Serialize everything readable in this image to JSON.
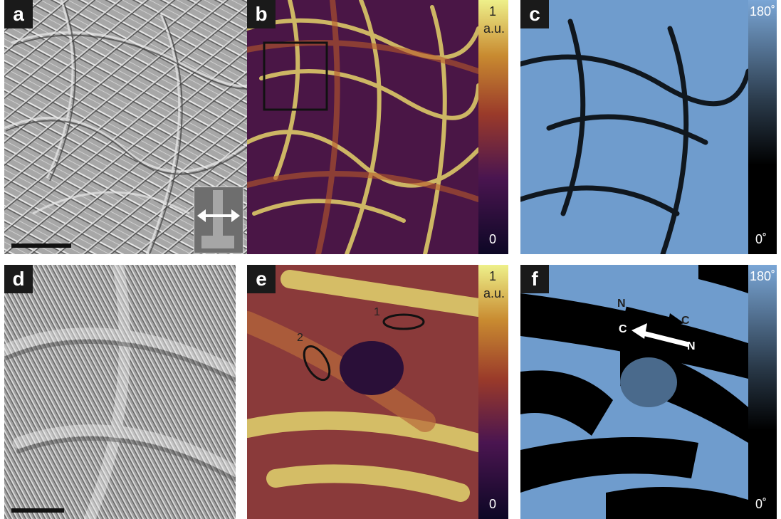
{
  "panels": {
    "a": {
      "tag": "a"
    },
    "b": {
      "tag": "b",
      "cbar_top": "1",
      "cbar_unit": "a.u.",
      "cbar_bottom": "0"
    },
    "c": {
      "tag": "c",
      "cbar_top": "180˚",
      "cbar_bottom": "0˚"
    },
    "d": {
      "tag": "d"
    },
    "e": {
      "tag": "e",
      "cbar_top": "1",
      "cbar_unit": "a.u.",
      "cbar_bottom": "0",
      "region1": "1",
      "region2": "2"
    },
    "f": {
      "tag": "f",
      "cbar_top": "180˚",
      "cbar_bottom": "0˚",
      "arrow1_start": "N",
      "arrow1_end": "C",
      "arrow2_start": "N",
      "arrow2_end": "C"
    }
  },
  "colors": {
    "amplitude_low": "#1b0b3a",
    "amplitude_mid": "#8a3a20",
    "amplitude_high": "#e8e07a",
    "phase_high": "#6f9ccd",
    "phase_low": "#000000"
  },
  "icons": [
    "afm-tip-icon",
    "double-arrow-icon"
  ]
}
